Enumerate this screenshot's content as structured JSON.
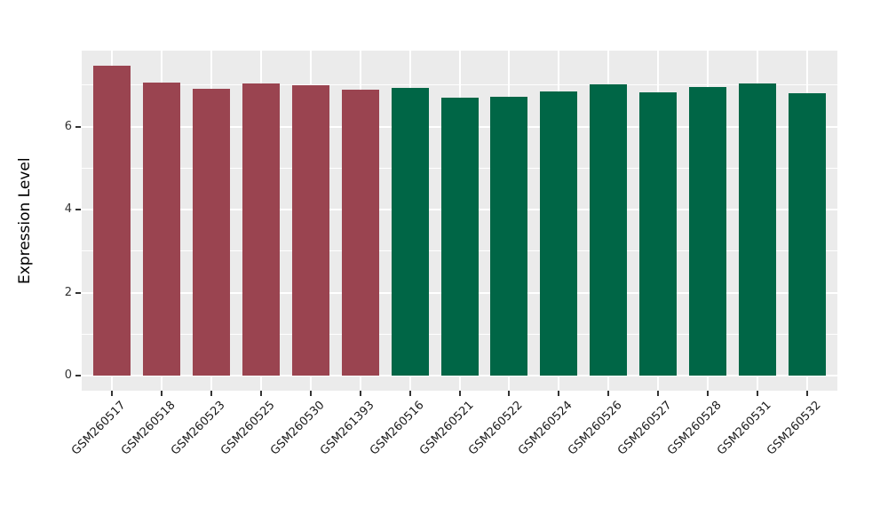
{
  "chart_data": {
    "type": "bar",
    "title": "",
    "xlabel": "",
    "ylabel": "Expression Level",
    "ylim": [
      0,
      7.85
    ],
    "yticks": [
      0,
      2,
      4,
      6
    ],
    "minor_grid_y": [
      1,
      3,
      5,
      7
    ],
    "grid": "white major+minor horizontal, white major vertical at bar centers, on gray panel",
    "legend_position": "none",
    "panel_bg": "#EBEBEB",
    "grid_color": "#FFFFFF",
    "categories": [
      "GSM260517",
      "GSM260518",
      "GSM260523",
      "GSM260525",
      "GSM260530",
      "GSM261393",
      "GSM260516",
      "GSM260521",
      "GSM260522",
      "GSM260524",
      "GSM260526",
      "GSM260527",
      "GSM260528",
      "GSM260531",
      "GSM260532"
    ],
    "values": [
      7.47,
      7.06,
      6.92,
      7.04,
      6.99,
      6.9,
      6.93,
      6.7,
      6.72,
      6.85,
      7.02,
      6.83,
      6.96,
      7.03,
      6.81
    ],
    "bar_groups": [
      "A",
      "A",
      "A",
      "A",
      "A",
      "A",
      "B",
      "B",
      "B",
      "B",
      "B",
      "B",
      "B",
      "B",
      "B"
    ],
    "palette": {
      "A": "#9A4450",
      "B": "#006646"
    }
  }
}
